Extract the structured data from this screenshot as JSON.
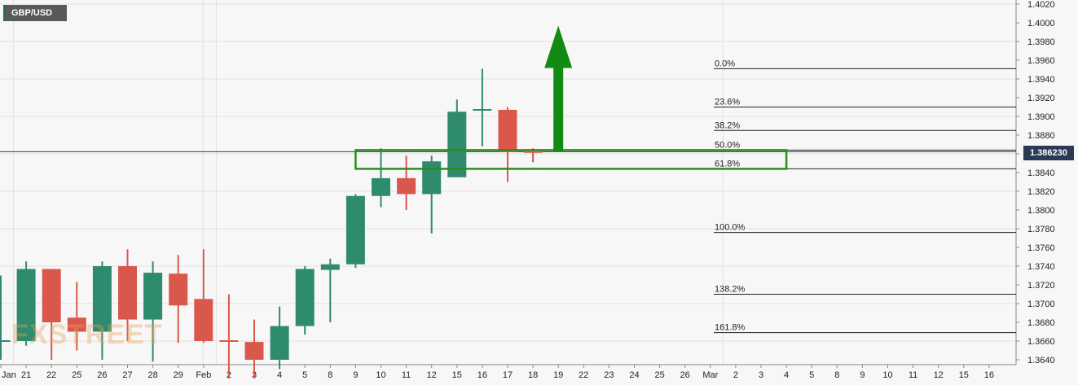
{
  "header": {
    "ticker": "GBP/USD"
  },
  "watermark": "FXSTREET",
  "price_badge": "1.386230",
  "colors": {
    "bull": "#2e8b6e",
    "bear": "#d9584b",
    "fib_line": "#222222",
    "zone": "#2e8b1f",
    "arrow": "#138a13",
    "price_line": "#2b3a55",
    "badge_bg": "#2b3a55"
  },
  "icons": {
    "trend_arrow": "up-arrow-icon"
  },
  "chart_data": {
    "type": "candlestick",
    "title": "GBP/USD",
    "x_tick_labels": [
      "Jan",
      "21",
      "22",
      "25",
      "26",
      "27",
      "28",
      "29",
      "Feb",
      "2",
      "3",
      "4",
      "5",
      "8",
      "9",
      "10",
      "11",
      "12",
      "15",
      "16",
      "17",
      "18",
      "19",
      "22",
      "23",
      "24",
      "25",
      "26",
      "Mar",
      "2",
      "3",
      "4",
      "5",
      "8",
      "9",
      "10",
      "11",
      "12",
      "15",
      "16"
    ],
    "y_ticks": [
      1.364,
      1.366,
      1.368,
      1.37,
      1.372,
      1.374,
      1.376,
      1.378,
      1.38,
      1.382,
      1.384,
      1.386,
      1.388,
      1.39,
      1.392,
      1.394,
      1.396,
      1.398,
      1.4,
      1.402
    ],
    "ylim": [
      1.3635,
      1.4025
    ],
    "grid": true,
    "current_price": 1.38623,
    "candles": [
      {
        "label": "20",
        "open": 1.366,
        "high": 1.373,
        "low": 1.364,
        "close": 1.366
      },
      {
        "label": "21",
        "open": 1.366,
        "high": 1.3745,
        "low": 1.3655,
        "close": 1.3737
      },
      {
        "label": "22",
        "open": 1.3737,
        "high": 1.3737,
        "low": 1.364,
        "close": 1.368
      },
      {
        "label": "25",
        "open": 1.3685,
        "high": 1.3723,
        "low": 1.365,
        "close": 1.367
      },
      {
        "label": "26",
        "open": 1.367,
        "high": 1.3745,
        "low": 1.364,
        "close": 1.374
      },
      {
        "label": "27",
        "open": 1.374,
        "high": 1.3758,
        "low": 1.366,
        "close": 1.3683
      },
      {
        "label": "28",
        "open": 1.3683,
        "high": 1.3745,
        "low": 1.3638,
        "close": 1.3733
      },
      {
        "label": "29",
        "open": 1.3732,
        "high": 1.3752,
        "low": 1.3658,
        "close": 1.3698
      },
      {
        "label": "Feb",
        "open": 1.3705,
        "high": 1.3758,
        "low": 1.3658,
        "close": 1.366
      },
      {
        "label": "2",
        "open": 1.366,
        "high": 1.371,
        "low": 1.362,
        "close": 1.3659
      },
      {
        "label": "3",
        "open": 1.3659,
        "high": 1.3683,
        "low": 1.362,
        "close": 1.364
      },
      {
        "label": "4",
        "open": 1.364,
        "high": 1.3697,
        "low": 1.363,
        "close": 1.3676
      },
      {
        "label": "5",
        "open": 1.3676,
        "high": 1.374,
        "low": 1.3667,
        "close": 1.3737
      },
      {
        "label": "8",
        "open": 1.3736,
        "high": 1.3748,
        "low": 1.368,
        "close": 1.3742
      },
      {
        "label": "9",
        "open": 1.3742,
        "high": 1.3817,
        "low": 1.3738,
        "close": 1.3815
      },
      {
        "label": "10",
        "open": 1.3815,
        "high": 1.3866,
        "low": 1.3803,
        "close": 1.3834
      },
      {
        "label": "11",
        "open": 1.3834,
        "high": 1.3858,
        "low": 1.38,
        "close": 1.3817
      },
      {
        "label": "12",
        "open": 1.3817,
        "high": 1.3858,
        "low": 1.3775,
        "close": 1.3852
      },
      {
        "label": "15",
        "open": 1.3835,
        "high": 1.3918,
        "low": 1.3835,
        "close": 1.3905
      },
      {
        "label": "16",
        "open": 1.3907,
        "high": 1.3951,
        "low": 1.3868,
        "close": 1.3907
      },
      {
        "label": "17",
        "open": 1.3907,
        "high": 1.391,
        "low": 1.383,
        "close": 1.3862
      },
      {
        "label": "18",
        "open": 1.3862,
        "high": 1.3866,
        "low": 1.3851,
        "close": 1.3861
      }
    ],
    "fib_levels": [
      {
        "label": "0.0%",
        "price": 1.3951
      },
      {
        "label": "23.6%",
        "price": 1.391
      },
      {
        "label": "38.2%",
        "price": 1.3885
      },
      {
        "label": "50.0%",
        "price": 1.3864
      },
      {
        "label": "61.8%",
        "price": 1.3844
      },
      {
        "label": "100.0%",
        "price": 1.3776
      },
      {
        "label": "138.2%",
        "price": 1.371
      },
      {
        "label": "161.8%",
        "price": 1.3669
      }
    ],
    "zone": {
      "price_high": 1.3864,
      "price_low": 1.3844,
      "from_label": "9",
      "to_label": "4"
    },
    "arrow": {
      "at_label": "19",
      "from_price": 1.3862,
      "to_price": 1.3997
    }
  }
}
